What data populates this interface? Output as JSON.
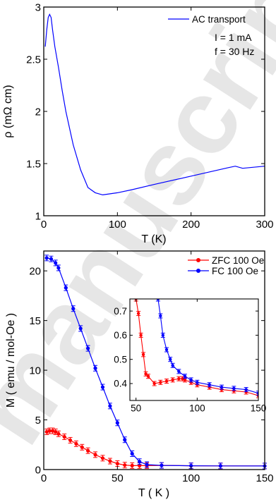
{
  "chart_data": [
    {
      "type": "line",
      "xlabel": "T (K)",
      "ylabel": "ρ (mΩ cm)",
      "xlim": [
        0,
        300
      ],
      "ylim": [
        1,
        3
      ],
      "xticks": [
        "0",
        "100",
        "200",
        "300"
      ],
      "yticks": [
        "1",
        "1.5",
        "2",
        "2.5",
        "3"
      ],
      "grid": false,
      "legend_position": "top-right",
      "annotations": [
        "I = 1 mA",
        "f = 30 Hz"
      ],
      "series": [
        {
          "name": "AC transport",
          "color": "#0000ff",
          "x": [
            2,
            4,
            6,
            8,
            10,
            12,
            15,
            20,
            25,
            30,
            40,
            50,
            60,
            70,
            80,
            90,
            100,
            120,
            150,
            200,
            250,
            260,
            270,
            300
          ],
          "y": [
            2.62,
            2.78,
            2.9,
            2.93,
            2.9,
            2.78,
            2.62,
            2.42,
            2.2,
            2.0,
            1.68,
            1.44,
            1.27,
            1.22,
            1.2,
            1.21,
            1.22,
            1.25,
            1.3,
            1.38,
            1.46,
            1.475,
            1.455,
            1.475
          ]
        }
      ]
    },
    {
      "type": "line",
      "xlabel": "T ( K )",
      "ylabel": "M ( emu / mol-Oe )",
      "xlim": [
        0,
        150
      ],
      "ylim": [
        0,
        22
      ],
      "xticks": [
        "0",
        "50",
        "100",
        "150"
      ],
      "yticks": [
        "0",
        "5",
        "10",
        "15",
        "20"
      ],
      "grid": false,
      "legend_position": "top-right",
      "series": [
        {
          "name": "ZFC 100 Oe",
          "color": "#ff0000",
          "x": [
            2,
            4,
            6,
            8,
            10,
            14,
            18,
            22,
            26,
            30,
            35,
            40,
            45,
            50,
            55,
            60,
            65,
            70,
            80,
            100,
            120,
            150
          ],
          "y": [
            3.8,
            3.9,
            3.9,
            3.8,
            3.6,
            3.3,
            2.95,
            2.6,
            2.25,
            1.9,
            1.5,
            1.15,
            0.85,
            0.6,
            0.45,
            0.4,
            0.4,
            0.4,
            0.42,
            0.38,
            0.37,
            0.36
          ]
        },
        {
          "name": "FC 100 Oe",
          "color": "#0000ff",
          "x": [
            2,
            5,
            8,
            10,
            15,
            20,
            25,
            30,
            35,
            40,
            45,
            50,
            55,
            60,
            65,
            70,
            80,
            100,
            120,
            150
          ],
          "y": [
            21.3,
            21.2,
            20.8,
            20.3,
            18.3,
            16.2,
            14.2,
            12.2,
            10.2,
            8.3,
            6.4,
            4.7,
            3.0,
            1.6,
            0.8,
            0.5,
            0.42,
            0.38,
            0.37,
            0.36
          ]
        }
      ],
      "inset": {
        "xlim": [
          45,
          150
        ],
        "ylim": [
          0.33,
          0.75
        ],
        "xticks": [
          "50",
          "100",
          "150"
        ],
        "yticks": [
          "0.4",
          "0.5",
          "0.6",
          "0.7"
        ],
        "series": [
          {
            "name": "ZFC 100 Oe",
            "color": "#ff0000",
            "x": [
              50,
              52,
              54,
              56,
              58,
              60,
              65,
              70,
              75,
              80,
              85,
              88,
              90,
              95,
              100,
              110,
              120,
              130,
              140,
              150
            ],
            "y": [
              0.75,
              0.69,
              0.6,
              0.52,
              0.44,
              0.43,
              0.4,
              0.405,
              0.41,
              0.415,
              0.42,
              0.42,
              0.415,
              0.405,
              0.395,
              0.385,
              0.375,
              0.37,
              0.365,
              0.35
            ]
          },
          {
            "name": "FC 100 Oe",
            "color": "#0000ff",
            "x": [
              68,
              70,
              72,
              75,
              78,
              80,
              85,
              90,
              95,
              100,
              110,
              120,
              130,
              140,
              150
            ],
            "y": [
              0.75,
              0.68,
              0.6,
              0.54,
              0.5,
              0.475,
              0.45,
              0.43,
              0.415,
              0.405,
              0.395,
              0.385,
              0.38,
              0.375,
              0.36
            ]
          }
        ]
      }
    }
  ],
  "watermark": "manuscript"
}
